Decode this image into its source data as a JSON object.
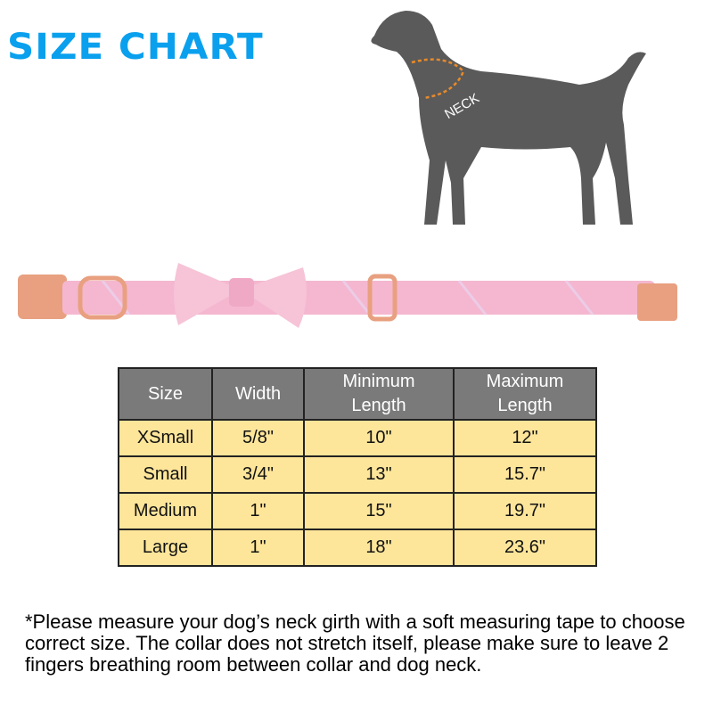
{
  "title": "SIZE CHART",
  "dog_diagram": {
    "neck_label": "NECK",
    "dog_color": "#5a5a5a",
    "measure_color": "#e88a2a"
  },
  "collar": {
    "color": "#f4b7cf",
    "hardware_color": "#e8a080"
  },
  "table": {
    "headers": [
      "Size",
      "Width",
      "Minimum\nLength",
      "Maximum\nLength"
    ],
    "header_lines": [
      [
        "Size"
      ],
      [
        "Width"
      ],
      [
        "Minimum",
        "Length"
      ],
      [
        "Maximum",
        "Length"
      ]
    ],
    "rows": [
      [
        "XSmall",
        "5/8\"",
        "10\"",
        "12\""
      ],
      [
        "Small",
        "3/4\"",
        "13\"",
        "15.7\""
      ],
      [
        "Medium",
        "1\"",
        "15\"",
        "19.7\""
      ],
      [
        "Large",
        "1\"",
        "18\"",
        "23.6\""
      ]
    ]
  },
  "note": "*Please measure your dog’s neck girth with a soft measuring tape to choose correct size. The collar does not stretch itself, please make sure to leave 2 fingers breathing room between collar and dog neck."
}
